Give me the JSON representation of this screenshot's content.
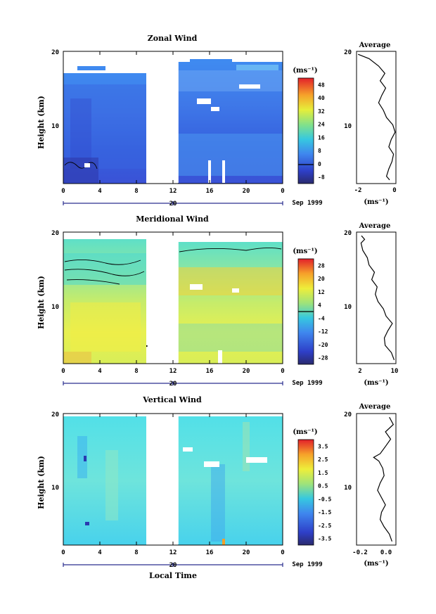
{
  "chart_data": [
    {
      "type": "heatmap",
      "title": "Zonal Wind",
      "ylabel": "Height (km)",
      "yticks": [
        "20",
        "10"
      ],
      "ylim": [
        2,
        20
      ],
      "xticks": [
        "0",
        "4",
        "8",
        "12",
        "16",
        "20",
        "0"
      ],
      "xlim": [
        0,
        24
      ],
      "date_tick": "20",
      "date_label": "Sep 1999",
      "data_gap": [
        9.2,
        12.6
      ],
      "colorbar_unit": "(ms⁻¹)",
      "colorbar_ticks": [
        "48",
        "40",
        "32",
        "24",
        "16",
        "8",
        "0",
        "-8"
      ],
      "colorbar_range": [
        -8,
        52
      ],
      "colorbar_zero_line": 0,
      "avg_title": "Average",
      "avg_xlabel": "(ms⁻¹)",
      "avg_xticks": [
        "-2",
        "0"
      ],
      "avg_xlim": [
        -2.4,
        0.1
      ],
      "avg_yticks": [
        "20",
        "10"
      ],
      "avg_profile": [
        {
          "h": 2.5,
          "v": -0.3
        },
        {
          "h": 3,
          "v": -0.5
        },
        {
          "h": 4,
          "v": -0.35
        },
        {
          "h": 5,
          "v": -0.15
        },
        {
          "h": 6,
          "v": -0.05
        },
        {
          "h": 7,
          "v": -0.35
        },
        {
          "h": 8,
          "v": -0.2
        },
        {
          "h": 9,
          "v": 0.05
        },
        {
          "h": 10,
          "v": -0.1
        },
        {
          "h": 11,
          "v": -0.5
        },
        {
          "h": 12,
          "v": -0.7
        },
        {
          "h": 13,
          "v": -1.0
        },
        {
          "h": 14,
          "v": -0.8
        },
        {
          "h": 15,
          "v": -0.55
        },
        {
          "h": 16,
          "v": -0.9
        },
        {
          "h": 17,
          "v": -0.6
        },
        {
          "h": 18,
          "v": -1.0
        },
        {
          "h": 19,
          "v": -1.6
        },
        {
          "h": 19.6,
          "v": -2.3
        }
      ]
    },
    {
      "type": "heatmap",
      "title": "Meridional Wind",
      "ylabel": "Height (km)",
      "yticks": [
        "20",
        "10"
      ],
      "ylim": [
        2,
        20
      ],
      "xticks": [
        "0",
        "4",
        "8",
        "12",
        "16",
        "20",
        "0"
      ],
      "xlim": [
        0,
        24
      ],
      "date_tick": "20",
      "date_label": "Sep 1999",
      "data_gap": [
        9.2,
        12.6
      ],
      "colorbar_unit": "(ms⁻¹)",
      "colorbar_ticks": [
        "28",
        "20",
        "12",
        "4",
        "-4",
        "-12",
        "-20",
        "-28"
      ],
      "colorbar_range": [
        -32,
        32
      ],
      "colorbar_zero_line": 4,
      "avg_title": "Average",
      "avg_xlabel": "(ms⁻¹)",
      "avg_xticks": [
        "2",
        "10"
      ],
      "avg_xlim": [
        1.2,
        10
      ],
      "avg_yticks": [
        "20",
        "10"
      ],
      "avg_profile": [
        {
          "h": 2.5,
          "v": 9.6
        },
        {
          "h": 3.5,
          "v": 9.0
        },
        {
          "h": 4.5,
          "v": 7.6
        },
        {
          "h": 5.5,
          "v": 7.4
        },
        {
          "h": 6.5,
          "v": 8.2
        },
        {
          "h": 7.5,
          "v": 9.2
        },
        {
          "h": 8.5,
          "v": 7.8
        },
        {
          "h": 9.5,
          "v": 7.2
        },
        {
          "h": 10.5,
          "v": 6.0
        },
        {
          "h": 11.5,
          "v": 5.4
        },
        {
          "h": 12.5,
          "v": 5.8
        },
        {
          "h": 13.5,
          "v": 4.6
        },
        {
          "h": 14.5,
          "v": 5.2
        },
        {
          "h": 15.5,
          "v": 4.0
        },
        {
          "h": 16.5,
          "v": 3.6
        },
        {
          "h": 17.5,
          "v": 2.6
        },
        {
          "h": 18.5,
          "v": 2.2
        },
        {
          "h": 19,
          "v": 3.0
        },
        {
          "h": 19.5,
          "v": 2.3
        }
      ]
    },
    {
      "type": "heatmap",
      "title": "Vertical Wind",
      "ylabel": "Height (km)",
      "yticks": [
        "20",
        "10"
      ],
      "ylim": [
        2,
        20
      ],
      "xticks": [
        "0",
        "4",
        "8",
        "12",
        "16",
        "20",
        "0"
      ],
      "xlim": [
        0,
        24
      ],
      "date_tick": "20",
      "date_label": "Sep 1999",
      "xlabel": "Local Time",
      "data_gap": [
        9.2,
        12.6
      ],
      "colorbar_unit": "(ms⁻¹)",
      "colorbar_ticks": [
        "3.5",
        "2.5",
        "1.5",
        "0.5",
        "-0.5",
        "-1.5",
        "-2.5",
        "-3.5"
      ],
      "colorbar_range": [
        -4,
        4
      ],
      "avg_title": "Average",
      "avg_xlabel": "(ms⁻¹)",
      "avg_xticks": [
        "-0.2",
        "0.0"
      ],
      "avg_xlim": [
        -0.27,
        0.03
      ],
      "avg_yticks": [
        "20",
        "10"
      ],
      "avg_profile": [
        {
          "h": 2.5,
          "v": 0.0
        },
        {
          "h": 3.5,
          "v": -0.02
        },
        {
          "h": 4.5,
          "v": -0.06
        },
        {
          "h": 5.5,
          "v": -0.09
        },
        {
          "h": 6.5,
          "v": -0.08
        },
        {
          "h": 7.5,
          "v": -0.05
        },
        {
          "h": 8.5,
          "v": -0.08
        },
        {
          "h": 9.5,
          "v": -0.11
        },
        {
          "h": 10.5,
          "v": -0.09
        },
        {
          "h": 11.5,
          "v": -0.06
        },
        {
          "h": 12.5,
          "v": -0.07
        },
        {
          "h": 13.5,
          "v": -0.1
        },
        {
          "h": 14,
          "v": -0.14
        },
        {
          "h": 14.5,
          "v": -0.09
        },
        {
          "h": 15.5,
          "v": -0.05
        },
        {
          "h": 16.5,
          "v": -0.01
        },
        {
          "h": 17.5,
          "v": -0.05
        },
        {
          "h": 18.5,
          "v": 0.01
        },
        {
          "h": 19.5,
          "v": -0.02
        }
      ]
    }
  ]
}
